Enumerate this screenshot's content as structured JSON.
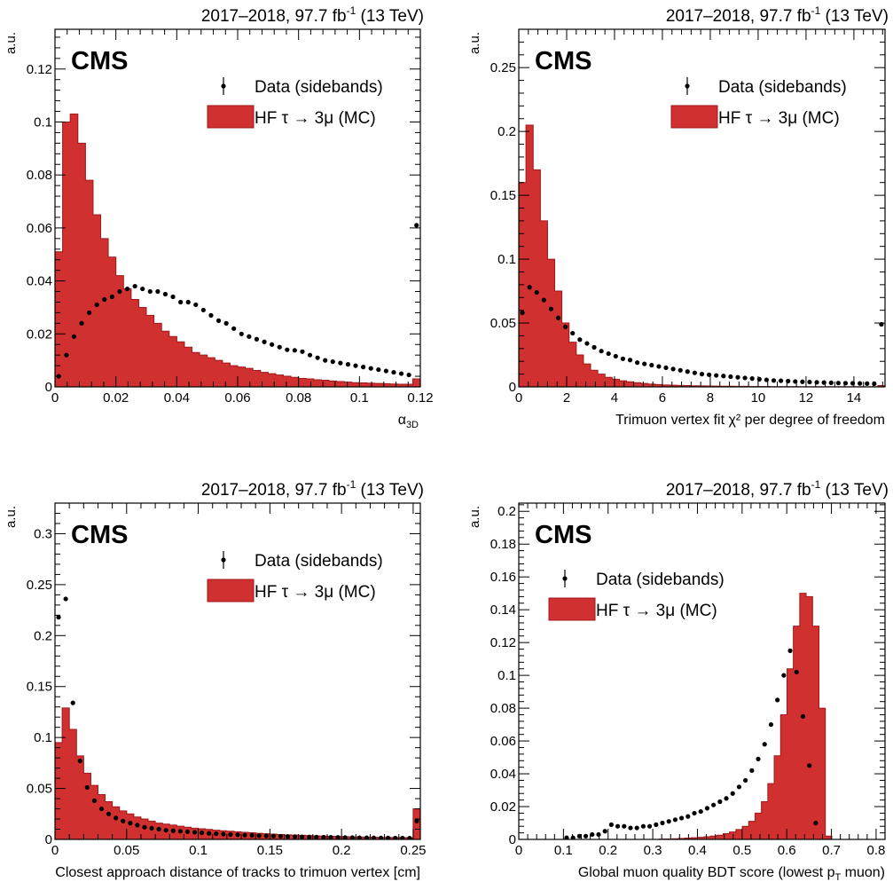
{
  "figure": {
    "colors": {
      "mc_fill": "#d03030",
      "mc_edge": "#a01818",
      "data_marker": "#000000"
    }
  },
  "chart_data": [
    {
      "type": "bar",
      "lumi_label": "2017–2018, 97.7 fb",
      "lumi_sup": "-1",
      "energy_label": "(13 TeV)",
      "experiment_label": "CMS",
      "ylabel": "a.u.",
      "xlabel_main": "α",
      "xlabel_sub": "3D",
      "legend": {
        "position": "top-right",
        "data_label": "Data (sidebands)",
        "mc_label": "HF τ → 3μ (MC)"
      },
      "xlim": [
        0,
        0.12
      ],
      "ylim": [
        0,
        0.135
      ],
      "xticks": [
        0,
        0.02,
        0.04,
        0.06,
        0.08,
        0.1,
        0.12
      ],
      "xtick_labels": [
        "0",
        "0.02",
        "0.04",
        "0.06",
        "0.08",
        "0.1",
        "0.12"
      ],
      "yticks": [
        0,
        0.02,
        0.04,
        0.06,
        0.08,
        0.1,
        0.12
      ],
      "ytick_labels": [
        "0",
        "0.02",
        "0.04",
        "0.06",
        "0.08",
        "0.1",
        "0.12"
      ],
      "bins": {
        "start": 0,
        "width": 0.0025,
        "count": 48
      },
      "series": [
        {
          "name": "HF τ → 3μ (MC)",
          "kind": "histogram",
          "values": [
            0.051,
            0.1,
            0.103,
            0.092,
            0.078,
            0.065,
            0.056,
            0.049,
            0.042,
            0.037,
            0.033,
            0.03,
            0.027,
            0.024,
            0.021,
            0.019,
            0.017,
            0.015,
            0.013,
            0.012,
            0.011,
            0.01,
            0.009,
            0.008,
            0.0075,
            0.007,
            0.0062,
            0.0055,
            0.005,
            0.0045,
            0.004,
            0.0036,
            0.0032,
            0.003,
            0.0027,
            0.0025,
            0.0022,
            0.002,
            0.0018,
            0.0016,
            0.0015,
            0.0014,
            0.0013,
            0.0012,
            0.0011,
            0.001,
            0.001,
            0.003
          ]
        },
        {
          "name": "Data (sidebands)",
          "kind": "points",
          "values": [
            0.004,
            0.012,
            0.019,
            0.024,
            0.028,
            0.031,
            0.033,
            0.034,
            0.036,
            0.037,
            0.038,
            0.037,
            0.036,
            0.036,
            0.035,
            0.034,
            0.032,
            0.032,
            0.031,
            0.029,
            0.027,
            0.025,
            0.024,
            0.022,
            0.02,
            0.019,
            0.018,
            0.017,
            0.016,
            0.015,
            0.014,
            0.0138,
            0.0133,
            0.012,
            0.011,
            0.01,
            0.0095,
            0.009,
            0.0085,
            0.008,
            0.0075,
            0.007,
            0.0065,
            0.006,
            0.0055,
            0.005,
            0.0045,
            0.061
          ]
        }
      ]
    },
    {
      "type": "bar",
      "lumi_label": "2017–2018, 97.7 fb",
      "lumi_sup": "-1",
      "energy_label": "(13 TeV)",
      "experiment_label": "CMS",
      "ylabel": "a.u.",
      "xlabel_main": "Trimuon vertex fit χ² per degree of freedom",
      "xlabel_sub": "",
      "legend": {
        "position": "top-right",
        "data_label": "Data (sidebands)",
        "mc_label": "HF τ → 3μ (MC)"
      },
      "xlim": [
        0,
        15.3
      ],
      "ylim": [
        0,
        0.28
      ],
      "xticks": [
        0,
        2,
        4,
        6,
        8,
        10,
        12,
        14
      ],
      "xtick_labels": [
        "0",
        "2",
        "4",
        "6",
        "8",
        "10",
        "12",
        "14"
      ],
      "yticks": [
        0,
        0.05,
        0.1,
        0.15,
        0.2,
        0.25
      ],
      "ytick_labels": [
        "0",
        "0.05",
        "0.1",
        "0.15",
        "0.2",
        "0.25"
      ],
      "bins": {
        "start": 0,
        "width": 0.3,
        "count": 51
      },
      "series": [
        {
          "name": "HF τ → 3μ (MC)",
          "kind": "histogram",
          "values": [
            0.16,
            0.205,
            0.17,
            0.13,
            0.1,
            0.075,
            0.05,
            0.035,
            0.025,
            0.018,
            0.013,
            0.01,
            0.0075,
            0.006,
            0.0048,
            0.004,
            0.0033,
            0.0027,
            0.0022,
            0.0018,
            0.0015,
            0.0013,
            0.0011,
            0.001,
            0.0009,
            0.0008,
            0.0007,
            0.0006,
            0.0005,
            0.0005,
            0.0004,
            0.0004,
            0.0003,
            0.0003,
            0.0003,
            0.0002,
            0.0002,
            0.0002,
            0.0002,
            0.0001,
            0.0001,
            0.0001,
            0.0001,
            0.0001,
            0.0001,
            0.0001,
            0.0001,
            0.0001,
            0.0001,
            0.0001,
            0.001
          ]
        },
        {
          "name": "Data (sidebands)",
          "kind": "points",
          "values": [
            0.058,
            0.078,
            0.074,
            0.068,
            0.061,
            0.054,
            0.047,
            0.042,
            0.037,
            0.034,
            0.031,
            0.028,
            0.026,
            0.024,
            0.022,
            0.021,
            0.019,
            0.018,
            0.017,
            0.016,
            0.015,
            0.014,
            0.013,
            0.012,
            0.011,
            0.01,
            0.0095,
            0.009,
            0.0085,
            0.008,
            0.0075,
            0.007,
            0.0065,
            0.006,
            0.0055,
            0.005,
            0.0048,
            0.0045,
            0.0042,
            0.004,
            0.0038,
            0.0036,
            0.0034,
            0.0032,
            0.003,
            0.0029,
            0.0028,
            0.0027,
            0.0026,
            0.0025,
            0.049
          ]
        }
      ]
    },
    {
      "type": "bar",
      "lumi_label": "2017–2018, 97.7 fb",
      "lumi_sup": "-1",
      "energy_label": "(13 TeV)",
      "experiment_label": "CMS",
      "ylabel": "a.u.",
      "xlabel_main": "Closest approach distance of tracks to trimuon vertex [cm]",
      "xlabel_sub": "",
      "legend": {
        "position": "top-right",
        "data_label": "Data (sidebands)",
        "mc_label": "HF τ → 3μ (MC)"
      },
      "xlim": [
        0,
        0.255
      ],
      "ylim": [
        0,
        0.33
      ],
      "xticks": [
        0,
        0.05,
        0.1,
        0.15,
        0.2,
        0.25
      ],
      "xtick_labels": [
        "0",
        "0.05",
        "0.1",
        "0.15",
        "0.2",
        "0.25"
      ],
      "yticks": [
        0,
        0.05,
        0.1,
        0.15,
        0.2,
        0.25,
        0.3
      ],
      "ytick_labels": [
        "0",
        "0.05",
        "0.1",
        "0.15",
        "0.2",
        "0.25",
        "0.3"
      ],
      "bins": {
        "start": 0,
        "width": 0.005,
        "count": 51
      },
      "series": [
        {
          "name": "HF τ → 3μ (MC)",
          "kind": "histogram",
          "values": [
            0.095,
            0.129,
            0.108,
            0.082,
            0.065,
            0.053,
            0.044,
            0.037,
            0.032,
            0.028,
            0.025,
            0.022,
            0.02,
            0.018,
            0.016,
            0.015,
            0.014,
            0.013,
            0.012,
            0.011,
            0.0105,
            0.0098,
            0.009,
            0.0085,
            0.008,
            0.0075,
            0.007,
            0.0065,
            0.006,
            0.0056,
            0.0052,
            0.0048,
            0.0045,
            0.0042,
            0.004,
            0.0037,
            0.0035,
            0.0033,
            0.0031,
            0.0029,
            0.0027,
            0.0025,
            0.0024,
            0.0023,
            0.0022,
            0.0021,
            0.002,
            0.0019,
            0.0018,
            0.0017,
            0.03
          ]
        },
        {
          "name": "Data (sidebands)",
          "kind": "points",
          "values": [
            0.218,
            0.236,
            0.134,
            0.077,
            0.051,
            0.038,
            0.03,
            0.025,
            0.021,
            0.018,
            0.016,
            0.014,
            0.012,
            0.011,
            0.01,
            0.009,
            0.0085,
            0.008,
            0.0075,
            0.007,
            0.0065,
            0.006,
            0.0056,
            0.0052,
            0.0048,
            0.0045,
            0.0042,
            0.004,
            0.0037,
            0.0035,
            0.0033,
            0.0031,
            0.0029,
            0.0027,
            0.0025,
            0.0024,
            0.0023,
            0.0022,
            0.0021,
            0.002,
            0.0019,
            0.0018,
            0.0017,
            0.0016,
            0.0015,
            0.0014,
            0.0014,
            0.0013,
            0.0013,
            0.0012,
            0.018
          ]
        }
      ]
    },
    {
      "type": "bar",
      "lumi_label": "2017–2018, 97.7 fb",
      "lumi_sup": "-1",
      "energy_label": "(13 TeV)",
      "experiment_label": "CMS",
      "ylabel": "a.u.",
      "xlabel_main": "Global muon quality BDT score (lowest p",
      "xlabel_sub": "T",
      "xlabel_tail": " muon)",
      "legend": {
        "position": "top-left",
        "data_label": "Data (sidebands)",
        "mc_label": "HF τ → 3μ (MC)"
      },
      "xlim": [
        0,
        0.82
      ],
      "ylim": [
        0,
        0.205
      ],
      "xticks": [
        0,
        0.1,
        0.2,
        0.3,
        0.4,
        0.5,
        0.6,
        0.7,
        0.8
      ],
      "xtick_labels": [
        "0",
        "0.1",
        "0.2",
        "0.3",
        "0.4",
        "0.5",
        "0.6",
        "0.7",
        "0.8"
      ],
      "yticks": [
        0,
        0.02,
        0.04,
        0.06,
        0.08,
        0.1,
        0.12,
        0.14,
        0.16,
        0.18,
        0.2
      ],
      "ytick_labels": [
        "0",
        "0.02",
        "0.04",
        "0.06",
        "0.08",
        "0.1",
        "0.12",
        "0.14",
        "0.16",
        "0.18",
        "0.2"
      ],
      "bins": {
        "start": 0.1,
        "width": 0.0143,
        "count": 42
      },
      "series": [
        {
          "name": "HF τ → 3μ (MC)",
          "kind": "histogram",
          "values": [
            0,
            0,
            0,
            0,
            0,
            0,
            0,
            0,
            0,
            0,
            0,
            0,
            0,
            0,
            0,
            0.0002,
            0.0003,
            0.0004,
            0.0006,
            0.0008,
            0.001,
            0.0013,
            0.0016,
            0.002,
            0.0026,
            0.0035,
            0.0045,
            0.006,
            0.008,
            0.011,
            0.016,
            0.023,
            0.034,
            0.051,
            0.076,
            0.104,
            0.13,
            0.15,
            0.148,
            0.13,
            0.08,
            0.002
          ]
        },
        {
          "name": "Data (sidebands)",
          "kind": "points",
          "values": [
            0.001,
            0.001,
            0.002,
            0.002,
            0.003,
            0.003,
            0.005,
            0.009,
            0.008,
            0.008,
            0.007,
            0.007,
            0.008,
            0.008,
            0.009,
            0.01,
            0.011,
            0.012,
            0.013,
            0.014,
            0.016,
            0.017,
            0.019,
            0.021,
            0.023,
            0.025,
            0.028,
            0.032,
            0.036,
            0.042,
            0.049,
            0.058,
            0.07,
            0.085,
            0.1,
            0.115,
            0.102,
            0.075,
            0.045,
            0.01,
            0,
            0
          ]
        }
      ]
    }
  ]
}
